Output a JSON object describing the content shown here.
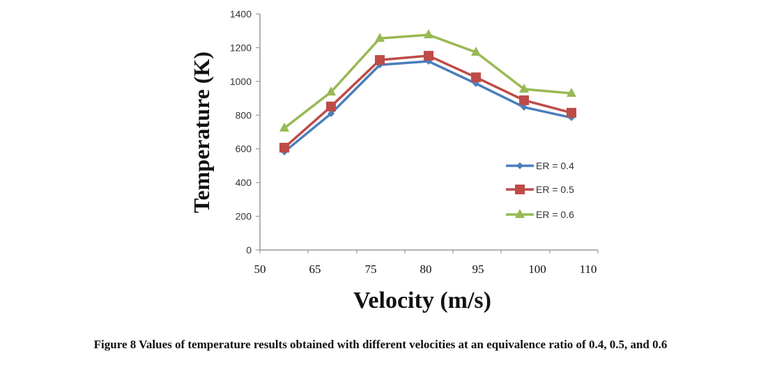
{
  "chart_data": {
    "type": "line",
    "title": "",
    "xlabel": "Velocity (m/s)",
    "ylabel": "Temperature (K)",
    "categories": [
      "50",
      "65",
      "75",
      "80",
      "95",
      "100",
      "110"
    ],
    "yticks": [
      "0",
      "200",
      "400",
      "600",
      "800",
      "1000",
      "1200",
      "1400"
    ],
    "ylim": [
      0,
      1400
    ],
    "grid": false,
    "legend_position": "center-right",
    "series": [
      {
        "name": "ER = 0.4",
        "color": "#4a7ebb",
        "marker": "diamond",
        "values": [
          582,
          809,
          1098,
          1119,
          987,
          847,
          785
        ]
      },
      {
        "name": "ER = 0.5",
        "color": "#be4b48",
        "marker": "square",
        "values": [
          607,
          851,
          1127,
          1152,
          1024,
          888,
          814
        ]
      },
      {
        "name": "ER = 0.6",
        "color": "#98b954",
        "marker": "triangle",
        "values": [
          723,
          937,
          1255,
          1276,
          1173,
          954,
          929
        ]
      }
    ]
  },
  "caption": {
    "text": "Figure 8 Values of temperature results obtained with different velocities at an equivalence ratio of 0.4, 0.5, and 0.6"
  }
}
